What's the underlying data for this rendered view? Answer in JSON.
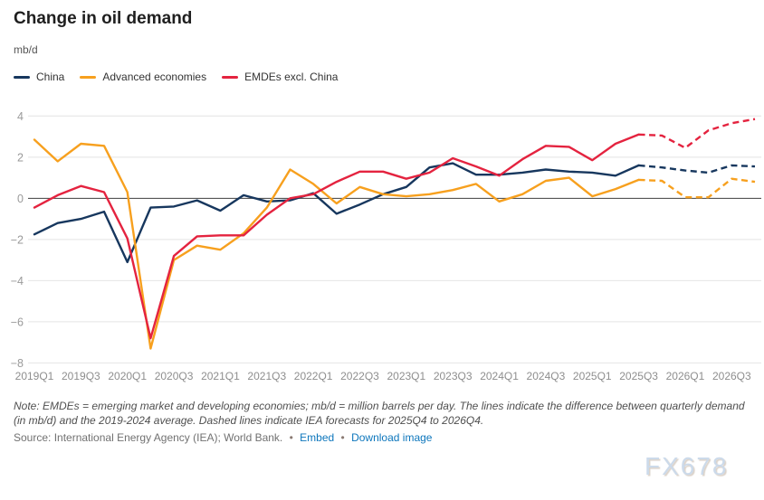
{
  "header": {
    "title": "Change in oil demand",
    "unit": "mb/d"
  },
  "legend": [
    {
      "label": "China",
      "color": "#17375e"
    },
    {
      "label": "Advanced economies",
      "color": "#f7a01e"
    },
    {
      "label": "EMDEs excl. China",
      "color": "#e4233f"
    }
  ],
  "chart_data": {
    "type": "line",
    "title": "Change in oil demand",
    "ylabel": "mb/d",
    "ylim": [
      -8,
      4
    ],
    "y_ticks": [
      4,
      2,
      0,
      -2,
      -4,
      -6,
      -8
    ],
    "grid": true,
    "legend_position": "top-left",
    "x": [
      "2019Q1",
      "2019Q2",
      "2019Q3",
      "2019Q4",
      "2020Q1",
      "2020Q2",
      "2020Q3",
      "2020Q4",
      "2021Q1",
      "2021Q2",
      "2021Q3",
      "2021Q4",
      "2022Q1",
      "2022Q2",
      "2022Q3",
      "2022Q4",
      "2023Q1",
      "2023Q2",
      "2023Q3",
      "2023Q4",
      "2024Q1",
      "2024Q2",
      "2024Q3",
      "2024Q4",
      "2025Q1",
      "2025Q2",
      "2025Q3",
      "2025Q4",
      "2026Q1",
      "2026Q2",
      "2026Q3",
      "2026Q4"
    ],
    "x_tick_labels": [
      "2019Q1",
      "2019Q3",
      "2020Q1",
      "2020Q3",
      "2021Q1",
      "2021Q3",
      "2022Q1",
      "2022Q3",
      "2023Q1",
      "2023Q3",
      "2024Q1",
      "2024Q3",
      "2025Q1",
      "2025Q3",
      "2026Q1",
      "2026Q3"
    ],
    "forecast_dashed_from": "2025Q3",
    "forecast_range_label": "2025Q4 to 2026Q4",
    "series": [
      {
        "name": "China",
        "color": "#17375e",
        "values": [
          -1.75,
          -1.2,
          -1.0,
          -0.65,
          -3.1,
          -0.45,
          -0.4,
          -0.1,
          -0.6,
          0.15,
          -0.15,
          -0.1,
          0.25,
          -0.75,
          -0.3,
          0.2,
          0.55,
          1.5,
          1.7,
          1.15,
          1.15,
          1.25,
          1.4,
          1.3,
          1.25,
          1.1,
          1.6,
          1.5,
          1.35,
          1.25,
          1.6,
          1.55
        ]
      },
      {
        "name": "Advanced economies",
        "color": "#f7a01e",
        "values": [
          2.85,
          1.8,
          2.65,
          2.55,
          0.3,
          -7.3,
          -3.0,
          -2.3,
          -2.5,
          -1.7,
          -0.45,
          1.4,
          0.7,
          -0.25,
          0.55,
          0.2,
          0.1,
          0.2,
          0.4,
          0.7,
          -0.15,
          0.2,
          0.85,
          1.0,
          0.1,
          0.45,
          0.9,
          0.85,
          0.05,
          0.05,
          0.95,
          0.8
        ]
      },
      {
        "name": "EMDEs excl. China",
        "color": "#e4233f",
        "values": [
          -0.45,
          0.15,
          0.6,
          0.3,
          -1.95,
          -6.8,
          -2.8,
          -1.85,
          -1.8,
          -1.8,
          -0.8,
          0.0,
          0.2,
          0.8,
          1.3,
          1.3,
          0.95,
          1.25,
          1.95,
          1.55,
          1.1,
          1.9,
          2.55,
          2.5,
          1.85,
          2.65,
          3.1,
          3.05,
          2.45,
          3.3,
          3.65,
          3.85
        ]
      }
    ]
  },
  "footer": {
    "note": "Note: EMDEs = emerging market and developing economies; mb/d = million barrels per day. The lines indicate the difference between quarterly demand (in mb/d) and the 2019-2024 average. Dashed lines indicate IEA forecasts for 2025Q4 to 2026Q4.",
    "source": "Source: International Energy Agency (IEA); World Bank.",
    "bullet": "•",
    "links": [
      {
        "label": "Embed"
      },
      {
        "label": "Download image"
      }
    ]
  },
  "watermark": "FX678"
}
